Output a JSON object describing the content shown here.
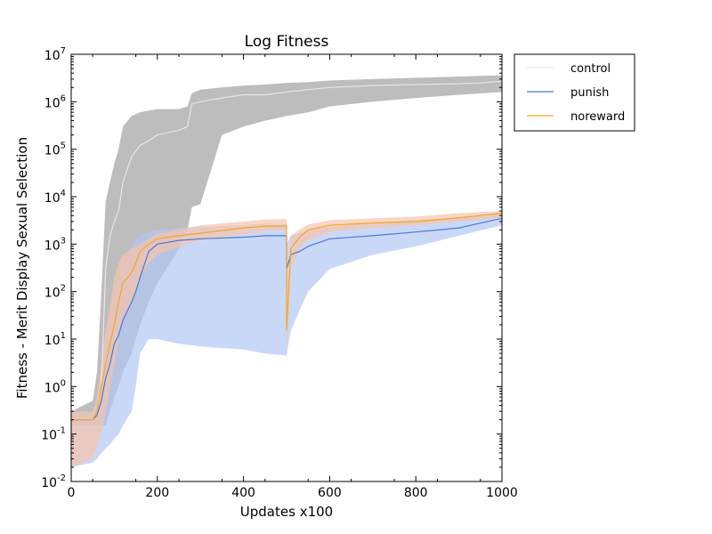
{
  "chart_data": {
    "type": "line",
    "title": "Log Fitness",
    "xlabel": "Updates x100",
    "ylabel": "Fitness - Merit Display Sexual Selection",
    "xlim": [
      0,
      1000
    ],
    "ylim": [
      0.01,
      10000000
    ],
    "yscale": "log",
    "xticks": [
      0,
      200,
      400,
      600,
      800,
      1000
    ],
    "xtick_labels": [
      "0",
      "200",
      "400",
      "600",
      "800",
      "1000"
    ],
    "yticks": [
      0.01,
      0.1,
      1,
      10,
      100,
      1000,
      10000,
      100000,
      1000000,
      10000000
    ],
    "ytick_labels": [
      {
        "base": "10",
        "exp": "-2"
      },
      {
        "base": "10",
        "exp": "-1"
      },
      {
        "base": "10",
        "exp": "0"
      },
      {
        "base": "10",
        "exp": "1"
      },
      {
        "base": "10",
        "exp": "2"
      },
      {
        "base": "10",
        "exp": "3"
      },
      {
        "base": "10",
        "exp": "4"
      },
      {
        "base": "10",
        "exp": "5"
      },
      {
        "base": "10",
        "exp": "6"
      },
      {
        "base": "10",
        "exp": "7"
      }
    ],
    "grid": false,
    "legend_position": "outside-top-right",
    "series": [
      {
        "name": "control",
        "color": "#e6e6e6",
        "band_color": "#bdbdbd",
        "x": [
          0,
          50,
          60,
          70,
          80,
          90,
          100,
          110,
          120,
          140,
          160,
          180,
          200,
          250,
          270,
          280,
          300,
          350,
          400,
          450,
          500,
          550,
          600,
          700,
          800,
          900,
          950,
          1000
        ],
        "y": [
          0.2,
          0.2,
          0.3,
          1,
          300,
          1500,
          3000,
          5000,
          20000,
          70000,
          120000,
          150000,
          200000,
          250000,
          300000,
          900000,
          1000000,
          1200000,
          1400000,
          1400000,
          1600000,
          1800000,
          2000000,
          2200000,
          2300000,
          2400000,
          2500000,
          2700000
        ],
        "upper": [
          0.3,
          0.5,
          2,
          100,
          8000,
          20000,
          50000,
          100000,
          300000,
          500000,
          600000,
          650000,
          700000,
          700000,
          800000,
          1500000,
          1800000,
          2000000,
          2200000,
          2300000,
          2500000,
          2600000,
          2800000,
          3000000,
          3200000,
          3400000,
          3500000,
          3600000
        ],
        "lower": [
          0.15,
          0.15,
          0.15,
          0.15,
          0.15,
          0.3,
          0.6,
          1,
          2,
          5,
          20,
          60,
          150,
          800,
          2000,
          6000,
          7000,
          200000,
          300000,
          400000,
          500000,
          600000,
          800000,
          1000000,
          1200000,
          1400000,
          1500000,
          1600000
        ]
      },
      {
        "name": "punish",
        "color": "#4a78d4",
        "band_color": "#b4c8f5",
        "x": [
          0,
          50,
          60,
          70,
          80,
          90,
          100,
          110,
          120,
          140,
          150,
          160,
          180,
          200,
          250,
          300,
          400,
          450,
          500,
          500,
          510,
          530,
          550,
          600,
          700,
          800,
          900,
          1000
        ],
        "y": [
          0.2,
          0.2,
          0.25,
          0.5,
          1.5,
          3,
          8,
          12,
          25,
          60,
          100,
          200,
          700,
          1000,
          1200,
          1300,
          1400,
          1500,
          1500,
          300,
          600,
          700,
          900,
          1300,
          1500,
          1800,
          2200,
          3500
        ],
        "upper": [
          0.3,
          0.3,
          0.5,
          2,
          10,
          30,
          80,
          150,
          300,
          900,
          1300,
          1500,
          1800,
          2000,
          2200,
          2300,
          2500,
          2700,
          2700,
          1000,
          1500,
          1700,
          2000,
          2300,
          2800,
          3200,
          3600,
          4500
        ],
        "lower": [
          0.02,
          0.025,
          0.03,
          0.04,
          0.05,
          0.06,
          0.08,
          0.1,
          0.15,
          0.3,
          1,
          5,
          10,
          10,
          8,
          7,
          6,
          5,
          4.5,
          4.5,
          15,
          40,
          100,
          300,
          600,
          900,
          1500,
          2500
        ]
      },
      {
        "name": "noreward",
        "color": "#f5a623",
        "band_color": "#f6c5ad",
        "x": [
          0,
          50,
          60,
          70,
          80,
          90,
          100,
          110,
          120,
          140,
          150,
          160,
          180,
          200,
          250,
          300,
          400,
          450,
          500,
          500,
          510,
          530,
          550,
          600,
          700,
          800,
          900,
          1000
        ],
        "y": [
          0.2,
          0.2,
          0.3,
          1,
          3,
          8,
          20,
          60,
          150,
          250,
          400,
          700,
          1000,
          1300,
          1500,
          1700,
          2200,
          2400,
          2400,
          15,
          800,
          1400,
          2000,
          2500,
          2800,
          3000,
          3600,
          4500
        ],
        "upper": [
          0.3,
          0.3,
          0.6,
          3,
          15,
          50,
          200,
          400,
          600,
          800,
          900,
          1000,
          1300,
          1700,
          2000,
          2500,
          3000,
          3300,
          3400,
          100,
          1500,
          2000,
          2600,
          3200,
          3500,
          3800,
          4500,
          5000
        ],
        "lower": [
          0.02,
          0.03,
          0.05,
          0.1,
          0.3,
          1,
          3,
          10,
          30,
          60,
          100,
          200,
          400,
          600,
          900,
          1200,
          1600,
          1900,
          2000,
          3,
          300,
          800,
          1200,
          1800,
          2200,
          2500,
          3000,
          3500
        ]
      }
    ]
  }
}
